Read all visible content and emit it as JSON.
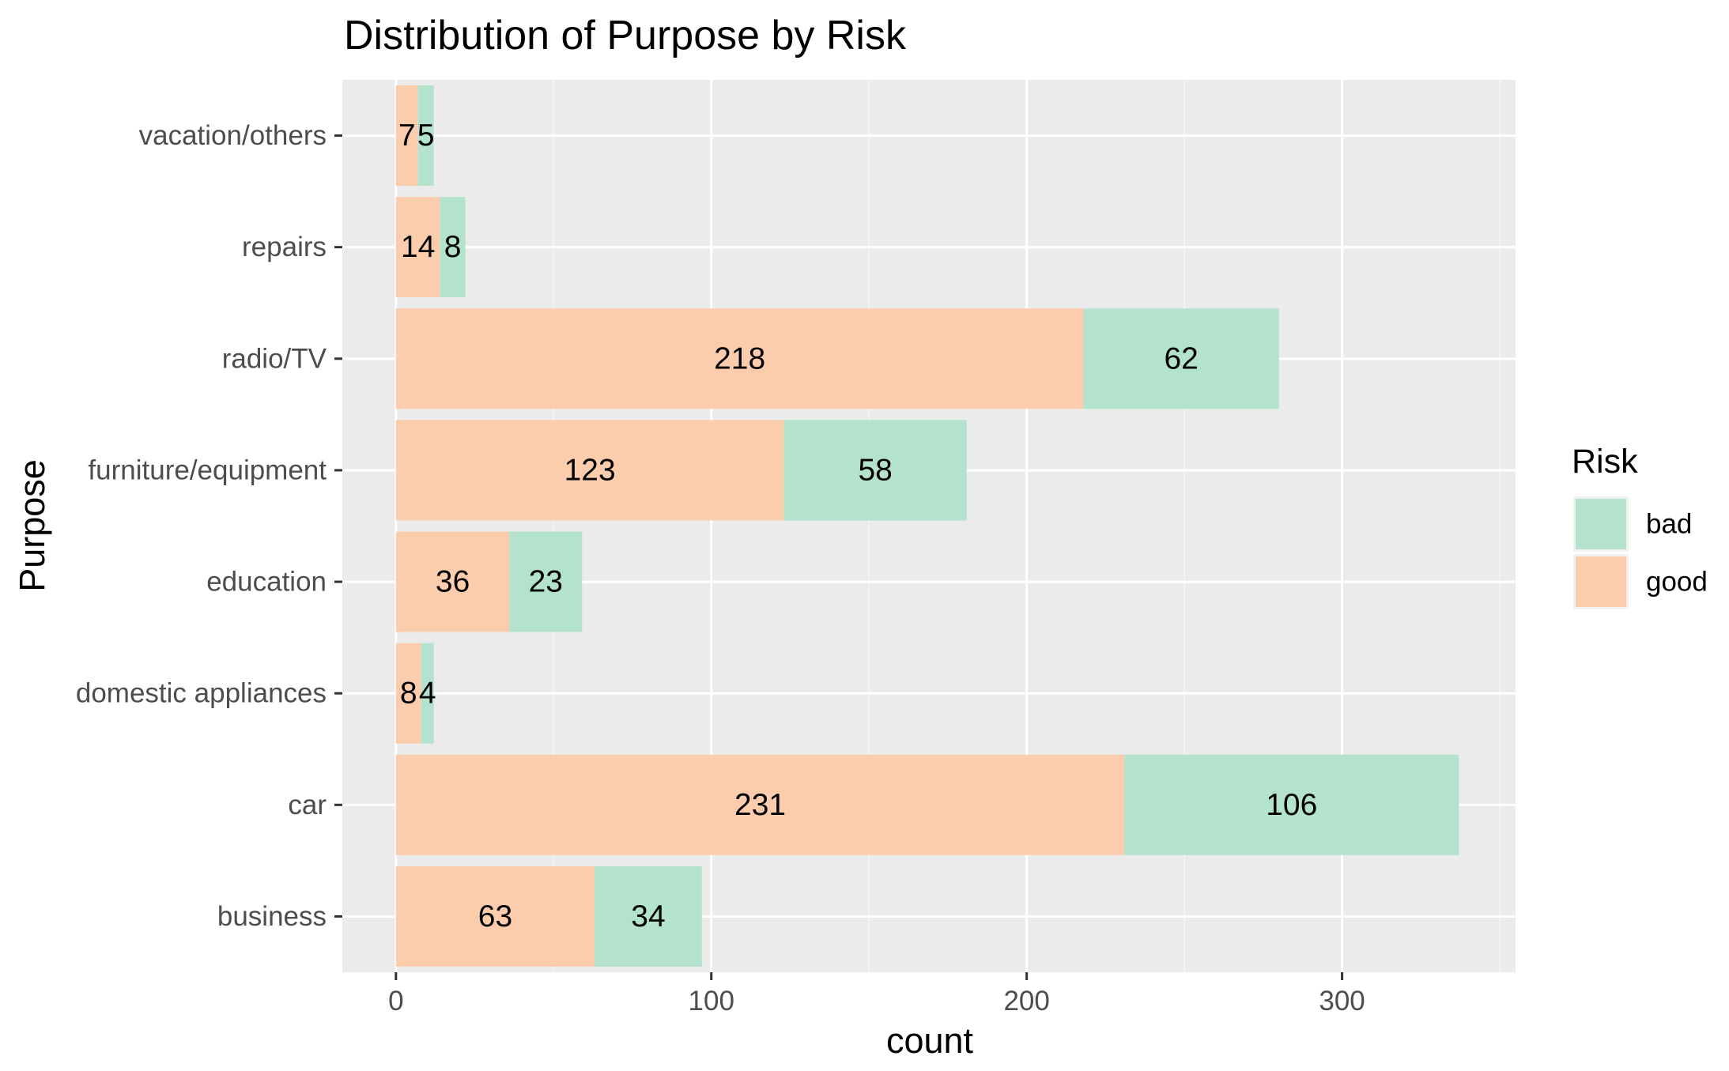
{
  "chart_data": {
    "type": "bar",
    "orientation": "horizontal",
    "stacked": true,
    "title": "Distribution of Purpose by Risk",
    "xlabel": "count",
    "ylabel": "Purpose",
    "xlim": [
      -17,
      355
    ],
    "x_ticks": [
      0,
      100,
      200,
      300
    ],
    "x_tick_labels": [
      "0",
      "100",
      "200",
      "300"
    ],
    "grid": true,
    "categories": [
      "business",
      "car",
      "domestic appliances",
      "education",
      "furniture/equipment",
      "radio/TV",
      "repairs",
      "vacation/others"
    ],
    "series": [
      {
        "name": "good",
        "color": "#FCCDAC",
        "values": [
          63,
          231,
          8,
          36,
          123,
          218,
          14,
          7
        ]
      },
      {
        "name": "bad",
        "color": "#B3E2CD",
        "values": [
          34,
          106,
          4,
          23,
          58,
          62,
          8,
          5
        ]
      }
    ],
    "data_labels": [
      {
        "good": "63",
        "bad": "34"
      },
      {
        "good": "231",
        "bad": "106"
      },
      {
        "good": "8",
        "bad": "4"
      },
      {
        "good": "36",
        "bad": "23"
      },
      {
        "good": "123",
        "bad": "58"
      },
      {
        "good": "218",
        "bad": "62"
      },
      {
        "good": "14",
        "bad": "8"
      },
      {
        "good": "7",
        "bad": "5"
      }
    ],
    "legend": {
      "title": "Risk",
      "position": "right",
      "entries": [
        {
          "label": "bad",
          "color": "#B3E2CD"
        },
        {
          "label": "good",
          "color": "#FCCDAC"
        }
      ]
    },
    "colors": {
      "panel_background": "#EBEBEB",
      "grid_major": "#FFFFFF",
      "grid_minor": "#F5F5F5",
      "tick_mark": "#333333",
      "tick_text": "#4D4D4D"
    }
  }
}
